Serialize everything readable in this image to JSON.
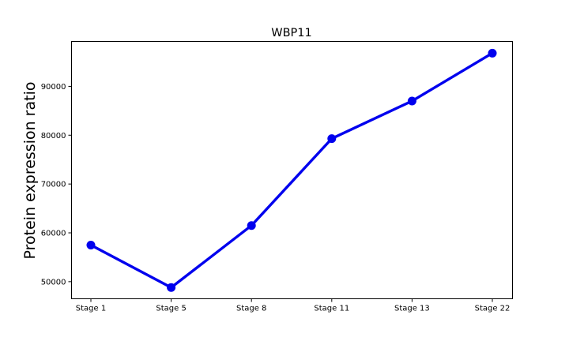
{
  "chart_data": {
    "type": "line",
    "title": "WBP11",
    "xlabel": "",
    "ylabel": "Protein expression ratio",
    "categories": [
      "Stage 1",
      "Stage 5",
      "Stage 8",
      "Stage 11",
      "Stage 13",
      "Stage 22"
    ],
    "series": [
      {
        "values": [
          57500,
          48800,
          61500,
          79300,
          87000,
          96800
        ]
      }
    ],
    "ylim": [
      46500,
      99200
    ],
    "yticks": [
      50000,
      60000,
      70000,
      80000,
      90000
    ],
    "ytick_labels": [
      "50000",
      "60000",
      "70000",
      "80000",
      "90000"
    ],
    "grid": false,
    "legend": "none",
    "colors": {
      "series": "#0000ee"
    }
  }
}
